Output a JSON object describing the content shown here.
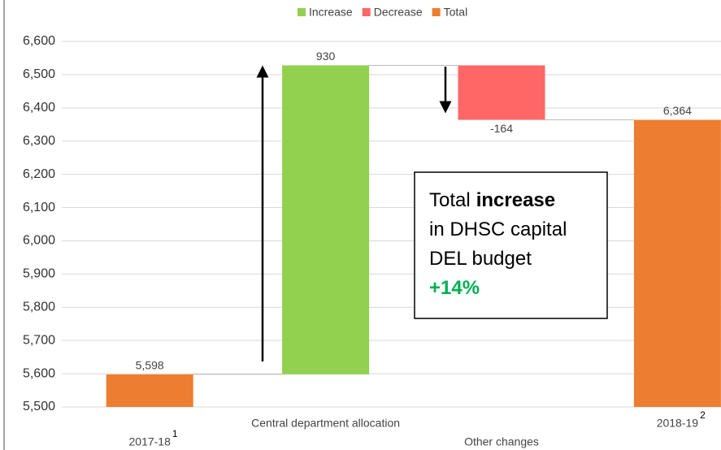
{
  "chart_data": {
    "type": "waterfall",
    "categories": [
      "2017-18",
      "Central department allocation",
      "Other changes",
      "2018-19"
    ],
    "category_notes": [
      "1",
      null,
      null,
      "2"
    ],
    "values": [
      5598,
      930,
      -164,
      6364
    ],
    "value_labels": [
      "5,598",
      "930",
      "-164",
      "6,364"
    ],
    "bar_series": [
      2,
      0,
      1,
      2
    ],
    "series": [
      {
        "name": "Increase",
        "color": "#92d050"
      },
      {
        "name": "Decrease",
        "color": "#ff6666"
      },
      {
        "name": "Total",
        "color": "#ed7d31"
      }
    ],
    "ylim": [
      5500,
      6600
    ],
    "yticks": [
      {
        "value": 5500,
        "label": "5,500"
      },
      {
        "value": 5600,
        "label": "5,600"
      },
      {
        "value": 5700,
        "label": "5,700"
      },
      {
        "value": 5800,
        "label": "5,800"
      },
      {
        "value": 5900,
        "label": "5,900"
      },
      {
        "value": 6000,
        "label": "6,000"
      },
      {
        "value": 6100,
        "label": "6,100"
      },
      {
        "value": 6200,
        "label": "6,200"
      },
      {
        "value": 6300,
        "label": "6,300"
      },
      {
        "value": 6400,
        "label": "6,400"
      },
      {
        "value": 6500,
        "label": "6,500"
      },
      {
        "value": 6600,
        "label": "6,600"
      }
    ],
    "grid": true,
    "annotation": {
      "lines": [
        [
          {
            "text": "Total"
          },
          {
            "text": "increase",
            "bold": true
          }
        ],
        [
          {
            "text": "in DHSC capital"
          }
        ],
        [
          {
            "text": "DEL budget"
          }
        ],
        [
          {
            "text": "+14%",
            "bold": true,
            "color": "#00b050"
          }
        ]
      ]
    }
  }
}
